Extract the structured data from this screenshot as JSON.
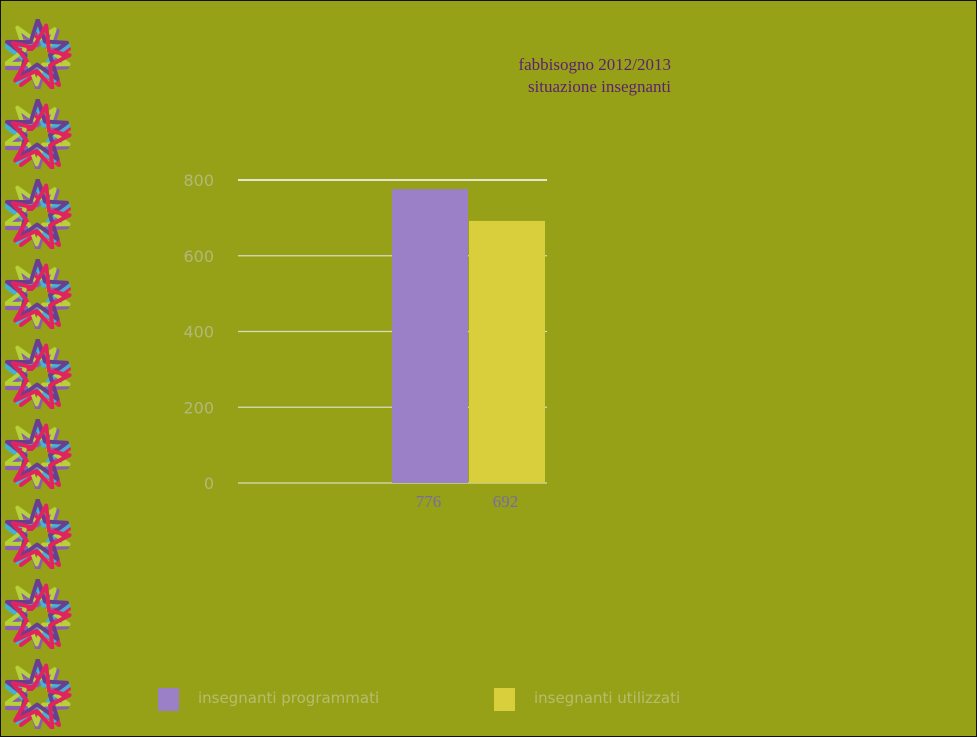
{
  "slide": {
    "background": "#96a117",
    "decoration_icon": "star-knot-icon",
    "decoration_count": 9
  },
  "chart_data": {
    "type": "bar",
    "title": "fabbisogno 2012/2013",
    "subtitle": "situazione insegnanti",
    "categories": [
      ""
    ],
    "series": [
      {
        "name": "insegnanti programmati",
        "values": [
          776
        ],
        "color": "#9b80c8"
      },
      {
        "name": "insegnanti utilizzati",
        "values": [
          692
        ],
        "color": "#d9cf3c"
      }
    ],
    "data_labels": [
      "776",
      "692"
    ],
    "ylim": [
      0,
      800
    ],
    "yticks": [
      0,
      200,
      400,
      600,
      800
    ],
    "ytick_labels": [
      "0",
      "200",
      "400",
      "600",
      "800"
    ],
    "grid": true,
    "legend_position": "bottom"
  }
}
